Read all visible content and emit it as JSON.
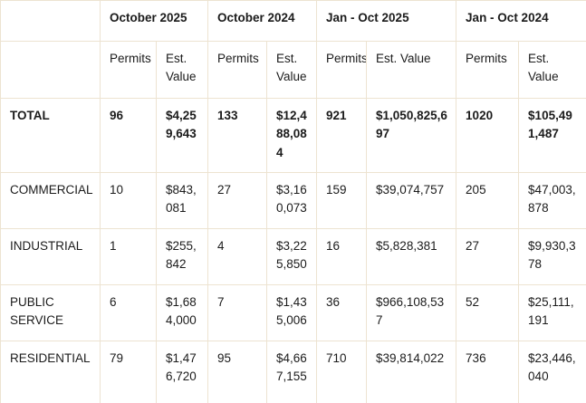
{
  "chart_data": {
    "type": "table",
    "column_groups": [
      "October 2025",
      "October 2024",
      "Jan - Oct 2025",
      "Jan - Oct 2024"
    ],
    "sub_columns": [
      "Permits",
      "Est. Value"
    ],
    "rows": [
      {
        "label": "TOTAL",
        "values": [
          "96",
          "$4,259,643",
          "133",
          "$12,488,084",
          "921",
          "$1,050,825,697",
          "1020",
          "$105,491,487"
        ]
      },
      {
        "label": "COMMERCIAL",
        "values": [
          "10",
          "$843,081",
          "27",
          "$3,160,073",
          "159",
          "$39,074,757",
          "205",
          "$47,003,878"
        ]
      },
      {
        "label": "INDUSTRIAL",
        "values": [
          "1",
          "$255,842",
          "4",
          "$3,225,850",
          "16",
          "$5,828,381",
          "27",
          "$9,930,378"
        ]
      },
      {
        "label": "PUBLIC SERVICE",
        "values": [
          "6",
          "$1,684,000",
          "7",
          "$1,435,006",
          "36",
          "$966,108,537",
          "52",
          "$25,111,191"
        ]
      },
      {
        "label": "RESIDENTIAL",
        "values": [
          "79",
          "$1,476,720",
          "95",
          "$4,667,155",
          "710",
          "$39,814,022",
          "736",
          "$23,446,040"
        ]
      }
    ],
    "colors": {
      "border": "#ede3d1",
      "text": "#1b1b1b",
      "background": "#ffffff"
    }
  }
}
